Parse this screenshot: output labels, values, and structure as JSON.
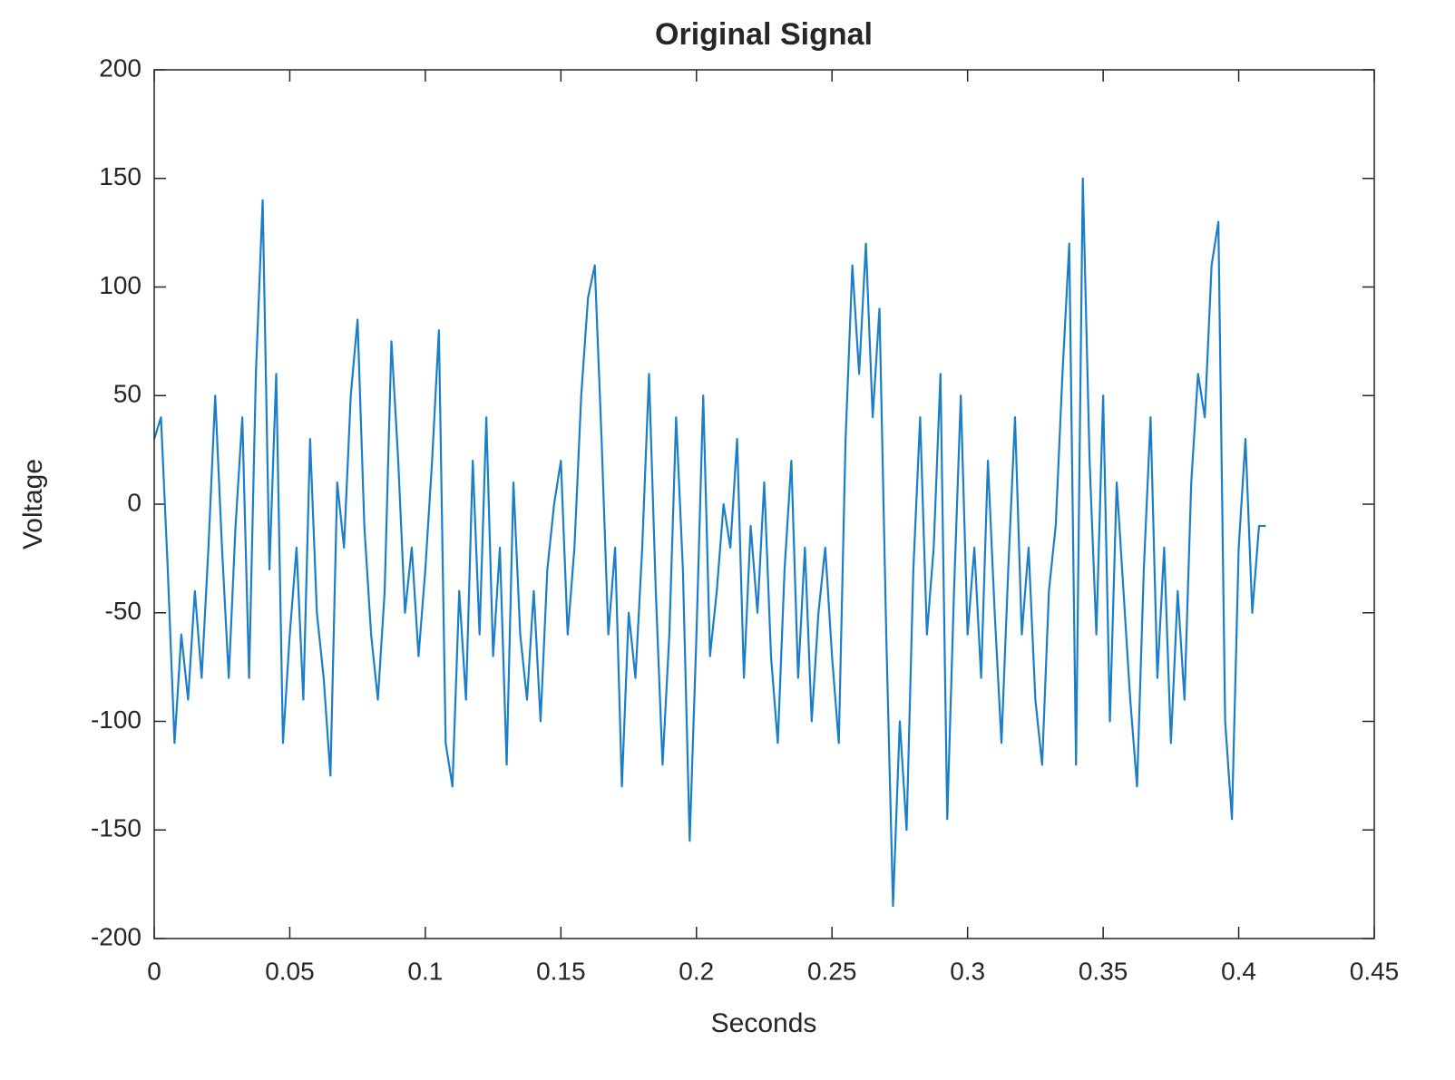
{
  "chart_data": {
    "type": "line",
    "title": "Original Signal",
    "x_label": "Seconds",
    "y_label": "Voltage",
    "x": [
      0,
      0.0025,
      0.005,
      0.0075,
      0.01,
      0.0125,
      0.015,
      0.0175,
      0.02,
      0.0225,
      0.025,
      0.0275,
      0.03,
      0.0325,
      0.035,
      0.0375,
      0.04,
      0.0425,
      0.045,
      0.0475,
      0.05,
      0.0525,
      0.055,
      0.0575,
      0.06,
      0.0625,
      0.065,
      0.0675,
      0.07,
      0.0725,
      0.075,
      0.0775,
      0.08,
      0.0825,
      0.085,
      0.0875,
      0.09,
      0.0925,
      0.095,
      0.0975,
      0.1,
      0.1025,
      0.105,
      0.1075,
      0.11,
      0.1125,
      0.115,
      0.1175,
      0.12,
      0.1225,
      0.125,
      0.1275,
      0.13,
      0.1325,
      0.135,
      0.1375,
      0.14,
      0.1425,
      0.145,
      0.1475,
      0.15,
      0.1525,
      0.155,
      0.1575,
      0.16,
      0.1625,
      0.165,
      0.1675,
      0.17,
      0.1725,
      0.175,
      0.1775,
      0.18,
      0.1825,
      0.185,
      0.1875,
      0.19,
      0.1925,
      0.195,
      0.1975,
      0.2,
      0.2025,
      0.205,
      0.2075,
      0.21,
      0.2125,
      0.215,
      0.2175,
      0.22,
      0.2225,
      0.225,
      0.2275,
      0.23,
      0.2325,
      0.235,
      0.2375,
      0.24,
      0.2425,
      0.245,
      0.2475,
      0.25,
      0.2525,
      0.255,
      0.2575,
      0.26,
      0.2625,
      0.265,
      0.2675,
      0.27,
      0.2725,
      0.275,
      0.2775,
      0.28,
      0.2825,
      0.285,
      0.2875,
      0.29,
      0.2925,
      0.295,
      0.2975,
      0.3,
      0.3025,
      0.305,
      0.3075,
      0.31,
      0.3125,
      0.315,
      0.3175,
      0.32,
      0.3225,
      0.325,
      0.3275,
      0.33,
      0.3325,
      0.335,
      0.3375,
      0.34,
      0.3425,
      0.345,
      0.3475,
      0.35,
      0.3525,
      0.355,
      0.3575,
      0.36,
      0.3625,
      0.365,
      0.3675,
      0.37,
      0.3725,
      0.375,
      0.3775,
      0.38,
      0.3825,
      0.385,
      0.3875,
      0.39,
      0.3925,
      0.395,
      0.3975,
      0.4,
      0.4025,
      0.405,
      0.4075,
      0.41
    ],
    "series": [
      {
        "color": "#1a7fc8",
        "values": [
          30,
          40,
          -30,
          -110,
          -60,
          -90,
          -40,
          -80,
          -20,
          50,
          -20,
          -80,
          -10,
          40,
          -80,
          60,
          140,
          -30,
          60,
          -110,
          -60,
          -20,
          -90,
          30,
          -50,
          -80,
          -125,
          10,
          -20,
          50,
          85,
          -10,
          -60,
          -90,
          -40,
          75,
          20,
          -50,
          -20,
          -70,
          -30,
          20,
          80,
          -110,
          -130,
          -40,
          -90,
          20,
          -60,
          40,
          -70,
          -20,
          -120,
          10,
          -60,
          -90,
          -40,
          -100,
          -30,
          0,
          20,
          -60,
          -20,
          50,
          95,
          110,
          30,
          -60,
          -20,
          -130,
          -50,
          -80,
          -20,
          60,
          -40,
          -120,
          -60,
          40,
          -30,
          -155,
          -60,
          50,
          -70,
          -40,
          0,
          -20,
          30,
          -80,
          -10,
          -50,
          10,
          -70,
          -110,
          -30,
          20,
          -80,
          -20,
          -100,
          -50,
          -20,
          -70,
          -110,
          30,
          110,
          60,
          120,
          40,
          90,
          -60,
          -185,
          -100,
          -150,
          -30,
          40,
          -60,
          -20,
          60,
          -145,
          -40,
          50,
          -60,
          -20,
          -80,
          20,
          -50,
          -110,
          -30,
          40,
          -60,
          -20,
          -90,
          -120,
          -40,
          -10,
          60,
          120,
          -120,
          150,
          20,
          -60,
          50,
          -100,
          10,
          -40,
          -90,
          -130,
          -30,
          40,
          -80,
          -20,
          -110,
          -40,
          -90,
          10,
          60,
          40,
          110,
          130,
          -100,
          -145,
          -20,
          30,
          -50,
          -10,
          -10
        ]
      }
    ],
    "xlim": [
      0,
      0.45
    ],
    "xticks": [
      0,
      0.05,
      0.1,
      0.15,
      0.2,
      0.25,
      0.3,
      0.35,
      0.4,
      0.45
    ],
    "ylim": [
      -200,
      200
    ],
    "yticks": [
      -200,
      -150,
      -100,
      -50,
      0,
      50,
      100,
      150,
      200
    ],
    "grid": false
  }
}
